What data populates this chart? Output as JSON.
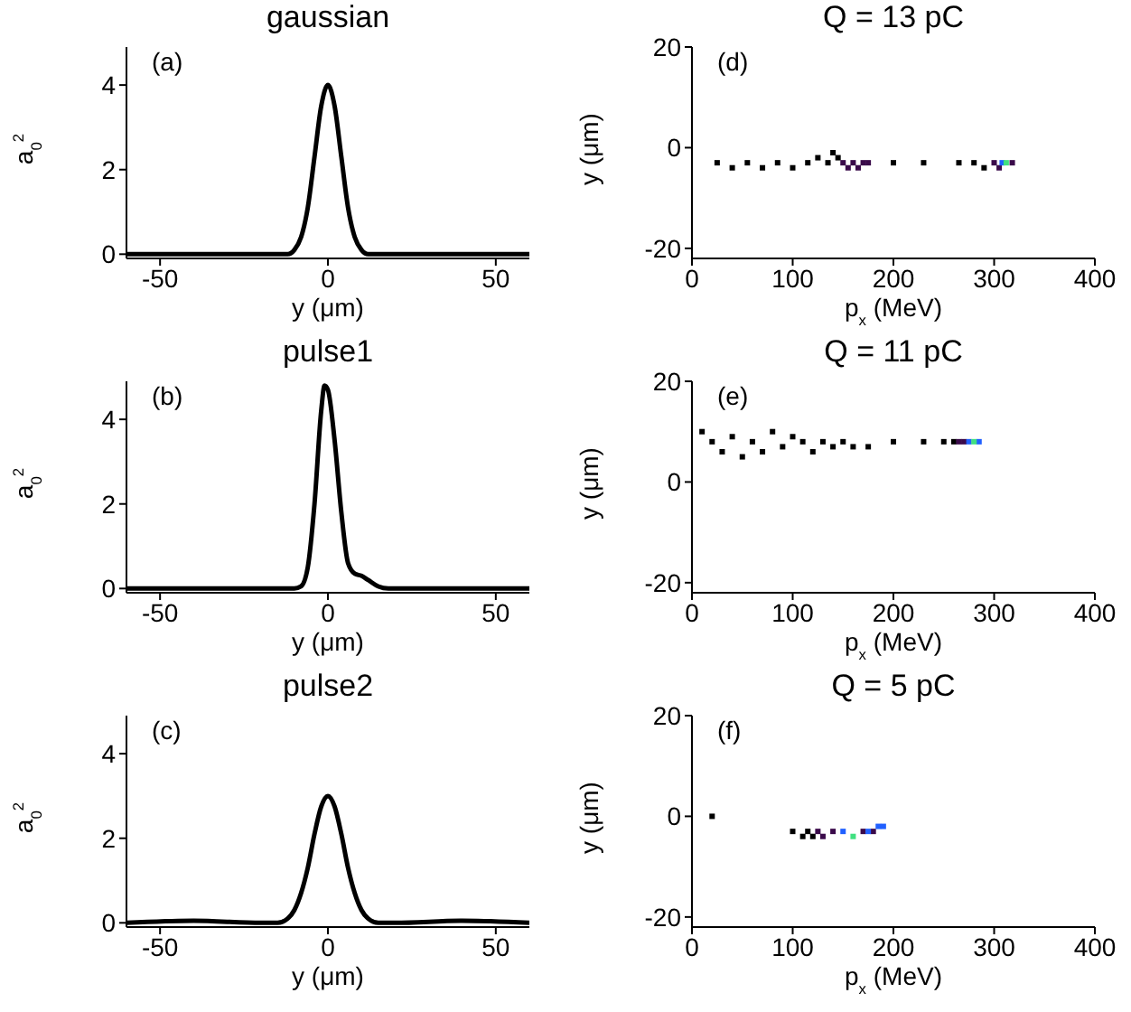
{
  "chart_data": [
    {
      "type": "line",
      "title": "gaussian",
      "xlabel": "y (μm)",
      "ylabel": "a$_{0}$$^{2}$",
      "annotations": [
        "(a)"
      ],
      "xlim": [
        -60,
        60
      ],
      "ylim": [
        -0.1,
        4.9
      ],
      "xticks": [
        -50,
        0,
        50
      ],
      "yticks": [
        0,
        2,
        4
      ],
      "x": [
        -60,
        -14,
        -12,
        -10,
        -8,
        -6,
        -4,
        -2,
        0,
        2,
        4,
        6,
        8,
        10,
        12,
        14,
        60
      ],
      "series": [
        {
          "color": "#000000",
          "values": [
            0,
            0,
            0,
            0.1,
            0.4,
            1.1,
            2.3,
            3.5,
            4,
            3.5,
            2.3,
            1.1,
            0.4,
            0.1,
            0,
            0,
            0
          ]
        }
      ]
    },
    {
      "type": "scatter",
      "title": "Q = 13 pC",
      "xlabel": "p$_{x}$ (MeV)",
      "ylabel": "y (μm)",
      "annotations": [
        "(d)"
      ],
      "xlim": [
        0,
        400
      ],
      "ylim": [
        -22,
        20
      ],
      "xticks": [
        0,
        100,
        200,
        300,
        400
      ],
      "yticks": [
        -20,
        0,
        20
      ],
      "marker": "square",
      "series": [
        {
          "color": "#000000",
          "x": [
            25,
            40,
            55,
            70,
            85,
            100,
            115,
            125,
            135,
            140,
            145,
            200,
            230,
            265,
            280,
            290
          ],
          "values": [
            -3,
            -4,
            -3,
            -4,
            -3,
            -4,
            -3,
            -2,
            -3,
            -1,
            -2,
            -3,
            -3,
            -3,
            -3,
            -4
          ]
        },
        {
          "color": "#3a0a4a",
          "x": [
            150,
            155,
            160,
            165,
            170,
            175,
            300,
            305,
            318
          ],
          "values": [
            -3,
            -4,
            -3,
            -4,
            -3,
            -3,
            -3,
            -4,
            -3
          ]
        },
        {
          "color": "#2060ff",
          "x": [
            308
          ],
          "values": [
            -3
          ]
        },
        {
          "color": "#40e080",
          "x": [
            312
          ],
          "values": [
            -3
          ]
        }
      ]
    },
    {
      "type": "line",
      "title": "pulse1",
      "xlabel": "y (μm)",
      "ylabel": "a$_{0}$$^{2}$",
      "annotations": [
        "(b)"
      ],
      "xlim": [
        -60,
        60
      ],
      "ylim": [
        -0.1,
        4.9
      ],
      "xticks": [
        -50,
        0,
        50
      ],
      "yticks": [
        0,
        2,
        4
      ],
      "x": [
        -60,
        -10,
        -8,
        -6,
        -4,
        -2,
        -1,
        0,
        2,
        4,
        6,
        8,
        10,
        12,
        15,
        18,
        60
      ],
      "series": [
        {
          "color": "#000000",
          "values": [
            0,
            0,
            0.05,
            0.5,
            2,
            4.2,
            4.8,
            4.7,
            3.5,
            1.8,
            0.6,
            0.35,
            0.3,
            0.2,
            0.05,
            0,
            0
          ]
        }
      ]
    },
    {
      "type": "scatter",
      "title": "Q = 11 pC",
      "xlabel": "p$_{x}$ (MeV)",
      "ylabel": "y (μm)",
      "annotations": [
        "(e)"
      ],
      "xlim": [
        0,
        400
      ],
      "ylim": [
        -22,
        20
      ],
      "xticks": [
        0,
        100,
        200,
        300,
        400
      ],
      "yticks": [
        -20,
        0,
        20
      ],
      "marker": "square",
      "series": [
        {
          "color": "#000000",
          "x": [
            10,
            20,
            30,
            40,
            50,
            60,
            70,
            80,
            90,
            100,
            110,
            120,
            130,
            140,
            150,
            160,
            175,
            200,
            230,
            250,
            260
          ],
          "values": [
            10,
            8,
            6,
            9,
            5,
            8,
            6,
            10,
            7,
            9,
            8,
            6,
            8,
            7,
            8,
            7,
            7,
            8,
            8,
            8,
            8
          ]
        },
        {
          "color": "#3a0a4a",
          "x": [
            265,
            270
          ],
          "values": [
            8,
            8
          ]
        },
        {
          "color": "#2060ff",
          "x": [
            275,
            285
          ],
          "values": [
            8,
            8
          ]
        },
        {
          "color": "#40e080",
          "x": [
            280
          ],
          "values": [
            8
          ]
        }
      ]
    },
    {
      "type": "line",
      "title": "pulse2",
      "xlabel": "y (μm)",
      "ylabel": "a$_{0}$$^{2}$",
      "annotations": [
        "(c)"
      ],
      "xlim": [
        -60,
        60
      ],
      "ylim": [
        -0.1,
        4.9
      ],
      "xticks": [
        -50,
        0,
        50
      ],
      "yticks": [
        0,
        2,
        4
      ],
      "x": [
        -60,
        -40,
        -20,
        -15,
        -12,
        -10,
        -8,
        -6,
        -4,
        -2,
        0,
        2,
        4,
        6,
        8,
        10,
        12,
        15,
        20,
        40,
        60
      ],
      "series": [
        {
          "color": "#000000",
          "values": [
            0,
            0.05,
            0,
            0,
            0.1,
            0.3,
            0.7,
            1.3,
            2.1,
            2.75,
            3,
            2.75,
            2.1,
            1.3,
            0.7,
            0.3,
            0.1,
            0,
            0,
            0.05,
            0
          ]
        }
      ]
    },
    {
      "type": "scatter",
      "title": "Q = 5 pC",
      "xlabel": "p$_{x}$ (MeV)",
      "ylabel": "y (μm)",
      "annotations": [
        "(f)"
      ],
      "xlim": [
        0,
        400
      ],
      "ylim": [
        -22,
        20
      ],
      "xticks": [
        0,
        100,
        200,
        300,
        400
      ],
      "yticks": [
        -20,
        0,
        20
      ],
      "marker": "square",
      "series": [
        {
          "color": "#000000",
          "x": [
            20,
            100,
            110,
            115,
            120
          ],
          "values": [
            0,
            -3,
            -4,
            -3,
            -4
          ]
        },
        {
          "color": "#3a0a4a",
          "x": [
            125,
            130,
            140,
            170,
            180
          ],
          "values": [
            -3,
            -4,
            -3,
            -3,
            -3
          ]
        },
        {
          "color": "#2060ff",
          "x": [
            150,
            175,
            185,
            190
          ],
          "values": [
            -3,
            -3,
            -2,
            -2
          ]
        },
        {
          "color": "#40e080",
          "x": [
            160
          ],
          "values": [
            -4
          ]
        }
      ]
    }
  ]
}
